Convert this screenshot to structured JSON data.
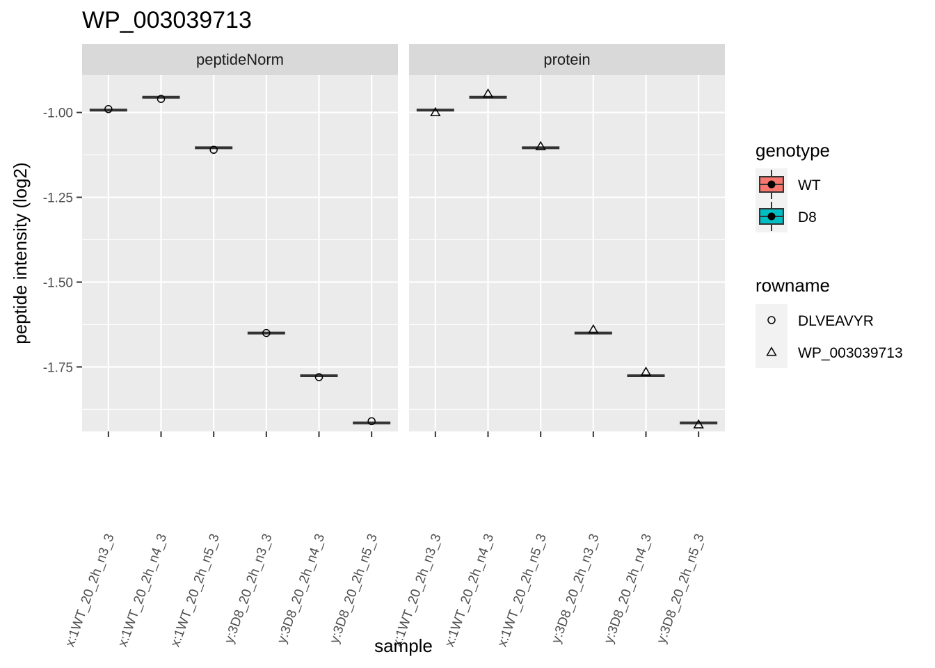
{
  "chart_data": {
    "type": "boxplot",
    "title": "WP_003039713",
    "xlabel": "sample",
    "ylabel": "peptide intensity (log2)",
    "ylim": [
      -1.94,
      -0.89
    ],
    "yticks": [
      -1.0,
      -1.25,
      -1.5,
      -1.75
    ],
    "ytick_labels": [
      "-1.00",
      "-1.25",
      "-1.50",
      "-1.75"
    ],
    "grid": true,
    "facets": [
      "peptideNorm",
      "protein"
    ],
    "categories": [
      "x:1WT_20_2h_n3_3",
      "x:1WT_20_2h_n4_3",
      "x:1WT_20_2h_n5_3",
      "y:3D8_20_2h_n3_3",
      "y:3D8_20_2h_n4_3",
      "y:3D8_20_2h_n5_3"
    ],
    "category_genotype": [
      "WT",
      "WT",
      "WT",
      "D8",
      "D8",
      "D8"
    ],
    "box_medians": {
      "peptideNorm": [
        -0.993,
        -0.955,
        -1.104,
        -1.65,
        -1.776,
        -1.915
      ],
      "protein": [
        -0.993,
        -0.955,
        -1.104,
        -1.65,
        -1.776,
        -1.915
      ]
    },
    "points": [
      {
        "facet": "peptideNorm",
        "rowname": "DLVEAVYR",
        "values": [
          -0.99,
          -0.96,
          -1.11,
          -1.65,
          -1.78,
          -1.91
        ]
      },
      {
        "facet": "protein",
        "rowname": "WP_003039713",
        "values": [
          -1.0,
          -0.945,
          -1.1,
          -1.64,
          -1.765,
          -1.92
        ]
      }
    ],
    "legends": [
      {
        "title": "genotype",
        "entries": [
          {
            "label": "WT",
            "color": "#F8766D"
          },
          {
            "label": "D8",
            "color": "#00BFC4"
          }
        ]
      },
      {
        "title": "rowname",
        "entries": [
          {
            "label": "DLVEAVYR",
            "shape": "circle"
          },
          {
            "label": "WP_003039713",
            "shape": "triangle"
          }
        ]
      }
    ],
    "legend_position": "right"
  }
}
